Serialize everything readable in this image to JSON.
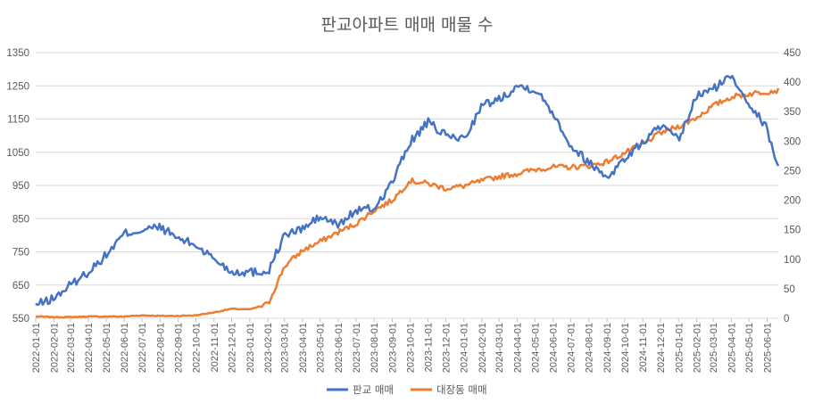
{
  "chart_data": {
    "type": "line",
    "title": "판교아파트 매매 매물 수",
    "xlabel": "",
    "ylabel": "",
    "grid": true,
    "legend_position": "bottom",
    "x": [
      "2022-01-01",
      "2022-02-01",
      "2022-03-01",
      "2022-04-01",
      "2022-05-01",
      "2022-06-01",
      "2022-07-01",
      "2022-08-01",
      "2022-09-01",
      "2022-10-01",
      "2022-11-01",
      "2022-12-01",
      "2023-01-01",
      "2023-02-01",
      "2023-03-01",
      "2023-04-01",
      "2023-05-01",
      "2023-06-01",
      "2023-07-01",
      "2023-08-01",
      "2023-09-01",
      "2023-10-01",
      "2023-11-01",
      "2023-12-01",
      "2024-01-01",
      "2024-02-01",
      "2024-03-01",
      "2024-04-01",
      "2024-05-01",
      "2024-06-01",
      "2024-07-01",
      "2024-08-01",
      "2024-09-01",
      "2024-10-01",
      "2024-11-01",
      "2024-12-01",
      "2025-01-01",
      "2025-02-01",
      "2025-03-01",
      "2025-04-01",
      "2025-05-01",
      "2025-06-01"
    ],
    "x_end": "2025-06-20",
    "y_left": {
      "ticks": [
        550,
        650,
        750,
        850,
        950,
        1050,
        1150,
        1250,
        1350
      ],
      "min": 550,
      "max": 1350
    },
    "y_right": {
      "ticks": [
        0,
        50,
        100,
        150,
        200,
        250,
        300,
        350,
        400,
        450
      ],
      "min": 0,
      "max": 450
    },
    "series": [
      {
        "name": "판교 매매",
        "axis": "left",
        "color": "#4472C4",
        "values": [
          590,
          610,
          650,
          690,
          740,
          805,
          815,
          825,
          790,
          770,
          730,
          690,
          690,
          690,
          800,
          820,
          855,
          830,
          875,
          880,
          960,
          1080,
          1140,
          1100,
          1090,
          1190,
          1210,
          1250,
          1240,
          1170,
          1070,
          1020,
          975,
          1030,
          1080,
          1130,
          1085,
          1220,
          1240,
          1280,
          1200,
          1120
        ],
        "end_value": 1000
      },
      {
        "name": "대장동 매매",
        "axis": "right",
        "color": "#ED7D31",
        "values": [
          3,
          2,
          2,
          3,
          3,
          3,
          5,
          4,
          4,
          5,
          10,
          16,
          15,
          24,
          88,
          115,
          130,
          146,
          160,
          183,
          200,
          233,
          228,
          220,
          224,
          233,
          240,
          245,
          252,
          256,
          256,
          258,
          265,
          280,
          295,
          314,
          325,
          340,
          360,
          375,
          380,
          384
        ],
        "end_value": 386
      }
    ]
  }
}
